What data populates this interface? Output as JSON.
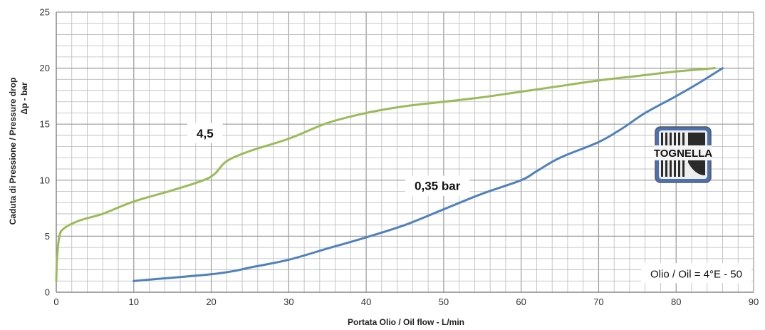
{
  "chart_data": {
    "type": "line",
    "xlabel": "Portata Olio / Oil flow  -  L/min",
    "ylabel_line1": "Caduta di Pressione / Pressure drop",
    "ylabel_line2": "Δp - bar",
    "xlim": [
      0,
      90
    ],
    "ylim": [
      0,
      25
    ],
    "x_ticks": [
      0,
      10,
      20,
      30,
      40,
      50,
      60,
      70,
      80,
      90
    ],
    "y_ticks": [
      0,
      5,
      10,
      15,
      20,
      25
    ],
    "grid": true,
    "series": [
      {
        "name": "4,5",
        "color": "#9bbb59",
        "points": [
          [
            0,
            1
          ],
          [
            0.1,
            3
          ],
          [
            0.4,
            5
          ],
          [
            1,
            5.7
          ],
          [
            3,
            6.4
          ],
          [
            6,
            7
          ],
          [
            10,
            8.1
          ],
          [
            15,
            9.1
          ],
          [
            19,
            10
          ],
          [
            20.5,
            10.6
          ],
          [
            22,
            11.7
          ],
          [
            25,
            12.6
          ],
          [
            30,
            13.7
          ],
          [
            35,
            15.1
          ],
          [
            40,
            16
          ],
          [
            45,
            16.6
          ],
          [
            50,
            17
          ],
          [
            55,
            17.4
          ],
          [
            60,
            17.9
          ],
          [
            65,
            18.4
          ],
          [
            70,
            18.9
          ],
          [
            75,
            19.3
          ],
          [
            80,
            19.7
          ],
          [
            85,
            20
          ]
        ]
      },
      {
        "name": "0,35 bar",
        "color": "#4f81bd",
        "points": [
          [
            10,
            1
          ],
          [
            15,
            1.3
          ],
          [
            20,
            1.6
          ],
          [
            23,
            1.9
          ],
          [
            25,
            2.2
          ],
          [
            30,
            2.9
          ],
          [
            35,
            3.9
          ],
          [
            40,
            4.9
          ],
          [
            45,
            6
          ],
          [
            50,
            7.4
          ],
          [
            55,
            8.8
          ],
          [
            60,
            10
          ],
          [
            62,
            10.8
          ],
          [
            65,
            12
          ],
          [
            70,
            13.4
          ],
          [
            73,
            14.6
          ],
          [
            76,
            16
          ],
          [
            80,
            17.5
          ],
          [
            83,
            18.7
          ],
          [
            86,
            20
          ]
        ]
      }
    ],
    "annotations": [
      {
        "text": "4,5",
        "x": 19.2,
        "y": 14.2
      },
      {
        "text": "0,35 bar",
        "x": 49.2,
        "y": 9.5
      },
      {
        "text": "Olio / Oil = 4°E - 50",
        "x": 82.6,
        "y": 1.7
      }
    ],
    "logo_text": "TOGNELLA",
    "colors": {
      "grid": "#b9b9b9",
      "axis": "#808080"
    }
  }
}
